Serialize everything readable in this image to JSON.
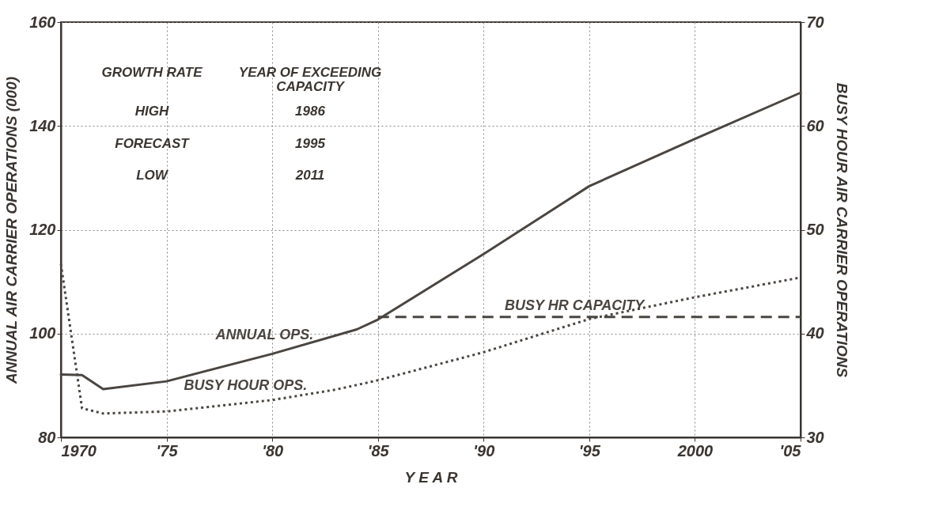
{
  "chart_data": {
    "type": "line",
    "xlabel": "Y E A R",
    "ylabel": "ANNUAL AIR CARRIER OPERATIONS (000)",
    "y2label": "BUSY HOUR AIR CARRIER OPERATIONS",
    "xlim": [
      1970,
      2005
    ],
    "xticks": [
      1970,
      {
        "value": 1975,
        "label": "'75"
      },
      {
        "value": 1980,
        "label": "'80"
      },
      {
        "value": 1985,
        "label": "'85"
      },
      {
        "value": 1990,
        "label": "'90"
      },
      {
        "value": 1995,
        "label": "'95"
      },
      2000,
      {
        "value": 2005,
        "label": "'05"
      }
    ],
    "ylim": [
      80,
      160
    ],
    "yticks": [
      80,
      100,
      120,
      140,
      160
    ],
    "y2lim": [
      30,
      70
    ],
    "y2ticks": [
      30,
      40,
      50,
      60,
      70
    ],
    "grid": true,
    "legend": false,
    "series": [
      {
        "name": "ANNUAL OPS.",
        "color": "#4a4540",
        "line_style": "solid",
        "x": [
          1970,
          1971,
          1972,
          1975,
          1980,
          1984,
          1985,
          1990,
          1995,
          2000,
          2005
        ],
        "values": [
          92.1,
          92,
          89.3,
          90.8,
          96.1,
          100.8,
          102.7,
          115.3,
          128.4,
          137.5,
          146.4
        ]
      },
      {
        "name": "BUSY HOUR OPS.",
        "color": "#4a4540",
        "line_style": "dotted",
        "axis": "y2",
        "x": [
          1970,
          1971,
          1972,
          1975,
          1980,
          1983,
          1985,
          1990,
          1995,
          2000,
          2005
        ],
        "values": [
          46.7,
          32.8,
          32.3,
          32.5,
          33.6,
          34.6,
          35.5,
          38.2,
          41.4,
          43.5,
          45.4
        ]
      },
      {
        "name": "BUSY HR CAPACITY",
        "color": "#4a4540",
        "line_style": "dashed",
        "axis": "y2",
        "x": [
          1985,
          2005
        ],
        "values": [
          41.6,
          41.6
        ]
      }
    ],
    "annotations": [
      "GROWTH RATE",
      "YEAR OF EXCEEDING\nCAPACITY",
      "HIGH",
      "1986",
      "FORECAST",
      "1995",
      "LOW",
      "2011"
    ]
  }
}
